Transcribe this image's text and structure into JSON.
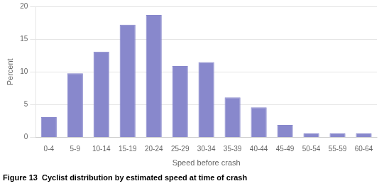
{
  "chart_data": {
    "type": "bar",
    "title": "Figure 13  Cyclist distribution by estimated speed at time of crash",
    "xlabel": "Speed before crash",
    "ylabel": "Percent",
    "categories": [
      "0-4",
      "5-9",
      "10-14",
      "15-19",
      "20-24",
      "25-29",
      "30-34",
      "35-39",
      "40-44",
      "45-49",
      "50-54",
      "55-59",
      "60-64"
    ],
    "values": [
      3.1,
      9.8,
      13.1,
      17.2,
      18.7,
      10.9,
      11.5,
      6.1,
      4.6,
      1.9,
      0.6,
      0.6,
      0.6
    ],
    "color": "#8888cc",
    "ylim": [
      0,
      20
    ],
    "yticks": [
      0,
      5,
      10,
      15,
      20
    ],
    "grid": true
  }
}
